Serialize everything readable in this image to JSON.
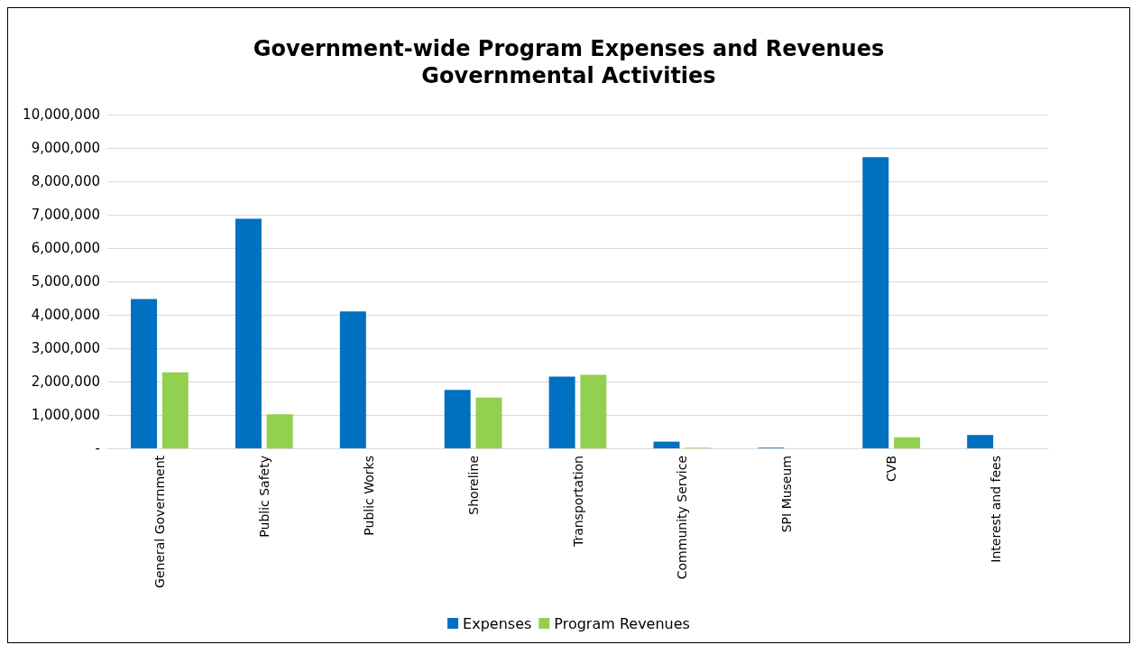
{
  "chart_data": {
    "type": "bar",
    "title": "Government-wide Program Expenses and Revenues",
    "subtitle": "Governmental Activities",
    "categories": [
      "General Government",
      "Public Safety",
      "Public Works",
      "Shoreline",
      "Transportation",
      "Community Service",
      "SPI Museum",
      "CVB",
      "Interest and fees"
    ],
    "series": [
      {
        "name": "Expenses",
        "color": "#0070c0",
        "values": [
          4470000,
          6880000,
          4100000,
          1750000,
          2150000,
          200000,
          20000,
          8720000,
          400000
        ]
      },
      {
        "name": "Program Revenues",
        "color": "#92d050",
        "values": [
          2280000,
          1020000,
          0,
          1520000,
          2200000,
          20000,
          0,
          330000,
          0
        ]
      }
    ],
    "ylim": [
      0,
      10000000
    ],
    "yticks": [
      {
        "value": 0,
        "label": "-"
      },
      {
        "value": 1000000,
        "label": "1,000,000"
      },
      {
        "value": 2000000,
        "label": "2,000,000"
      },
      {
        "value": 3000000,
        "label": "3,000,000"
      },
      {
        "value": 4000000,
        "label": "4,000,000"
      },
      {
        "value": 5000000,
        "label": "5,000,000"
      },
      {
        "value": 6000000,
        "label": "6,000,000"
      },
      {
        "value": 7000000,
        "label": "7,000,000"
      },
      {
        "value": 8000000,
        "label": "8,000,000"
      },
      {
        "value": 9000000,
        "label": "9,000,000"
      },
      {
        "value": 10000000,
        "label": "10,000,000"
      }
    ],
    "grid": "y",
    "legend": "bottom"
  }
}
